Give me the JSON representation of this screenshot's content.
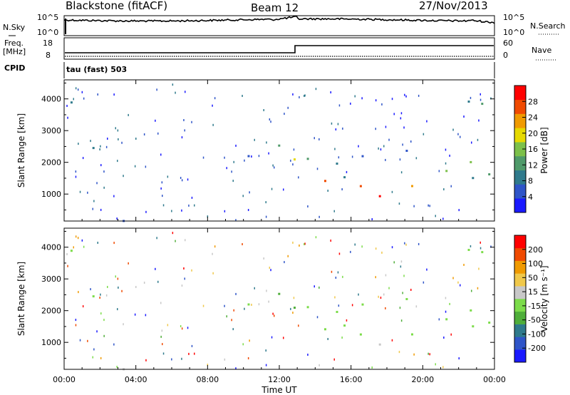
{
  "header": {
    "station": "Blackstone (fitACF)",
    "beam": "Beam 12",
    "date": "27/Nov/2013"
  },
  "top_panel": {
    "left_label": "N.Sky",
    "left_ticks": [
      "10^5",
      "10^0"
    ],
    "right_label": "N.Search",
    "right_ticks": [
      "10^5",
      "10^0"
    ]
  },
  "freq_panel": {
    "left_label_1": "Freq.",
    "left_label_2": "[MHz]",
    "left_ticks": [
      "18",
      "8"
    ],
    "right_label": "Nave",
    "right_ticks": [
      "60",
      "0"
    ]
  },
  "cpid": {
    "label": "CPID",
    "value": "tau (fast) 503"
  },
  "colors": {
    "power": [
      "#1a1aff",
      "#2f55c8",
      "#2f7a8c",
      "#4f9a6a",
      "#7cc04a",
      "#e6d900",
      "#f09a00",
      "#f04a00",
      "#ff0000"
    ],
    "velocity": [
      "#1a1aff",
      "#2f55c8",
      "#2f7a8c",
      "#4fae3a",
      "#7cdc4a",
      "#c8c8c8",
      "#f0c84a",
      "#f09a00",
      "#f04a00",
      "#ff0000"
    ]
  },
  "chart_data": [
    {
      "type": "heatmap",
      "name": "power",
      "xlabel": "",
      "ylabel": "Slant Range [km]",
      "xlim": [
        0,
        24
      ],
      "ylim": [
        150,
        4600
      ],
      "yticks": [
        "4000",
        "3000",
        "2000",
        "1000"
      ],
      "ytick_values": [
        4000,
        3000,
        2000,
        1000
      ],
      "colorbar": {
        "label": "Power [dB]",
        "ticks": [
          "28",
          "24",
          "20",
          "16",
          "12",
          "8",
          "4"
        ],
        "tick_values": [
          28,
          24,
          20,
          16,
          12,
          8,
          4
        ],
        "range": [
          0,
          32
        ]
      }
    },
    {
      "type": "heatmap",
      "name": "velocity",
      "xlabel": "Time UT",
      "ylabel": "Slant Range [km]",
      "xlim": [
        0,
        24
      ],
      "ylim": [
        150,
        4600
      ],
      "xticks": [
        "00:00",
        "04:00",
        "08:00",
        "12:00",
        "16:00",
        "20:00",
        "00:00"
      ],
      "xtick_values": [
        0,
        4,
        8,
        12,
        16,
        20,
        24
      ],
      "yticks": [
        "4000",
        "3000",
        "2000",
        "1000"
      ],
      "ytick_values": [
        4000,
        3000,
        2000,
        1000
      ],
      "colorbar": {
        "label": "Velocity [m s⁻¹]",
        "ticks": [
          "200",
          "100",
          "50",
          "15",
          "-15",
          "-50",
          "-100",
          "-200"
        ],
        "tick_values": [
          200,
          100,
          50,
          15,
          -15,
          -50,
          -100,
          -200
        ],
        "range": [
          -250,
          250
        ]
      }
    }
  ]
}
